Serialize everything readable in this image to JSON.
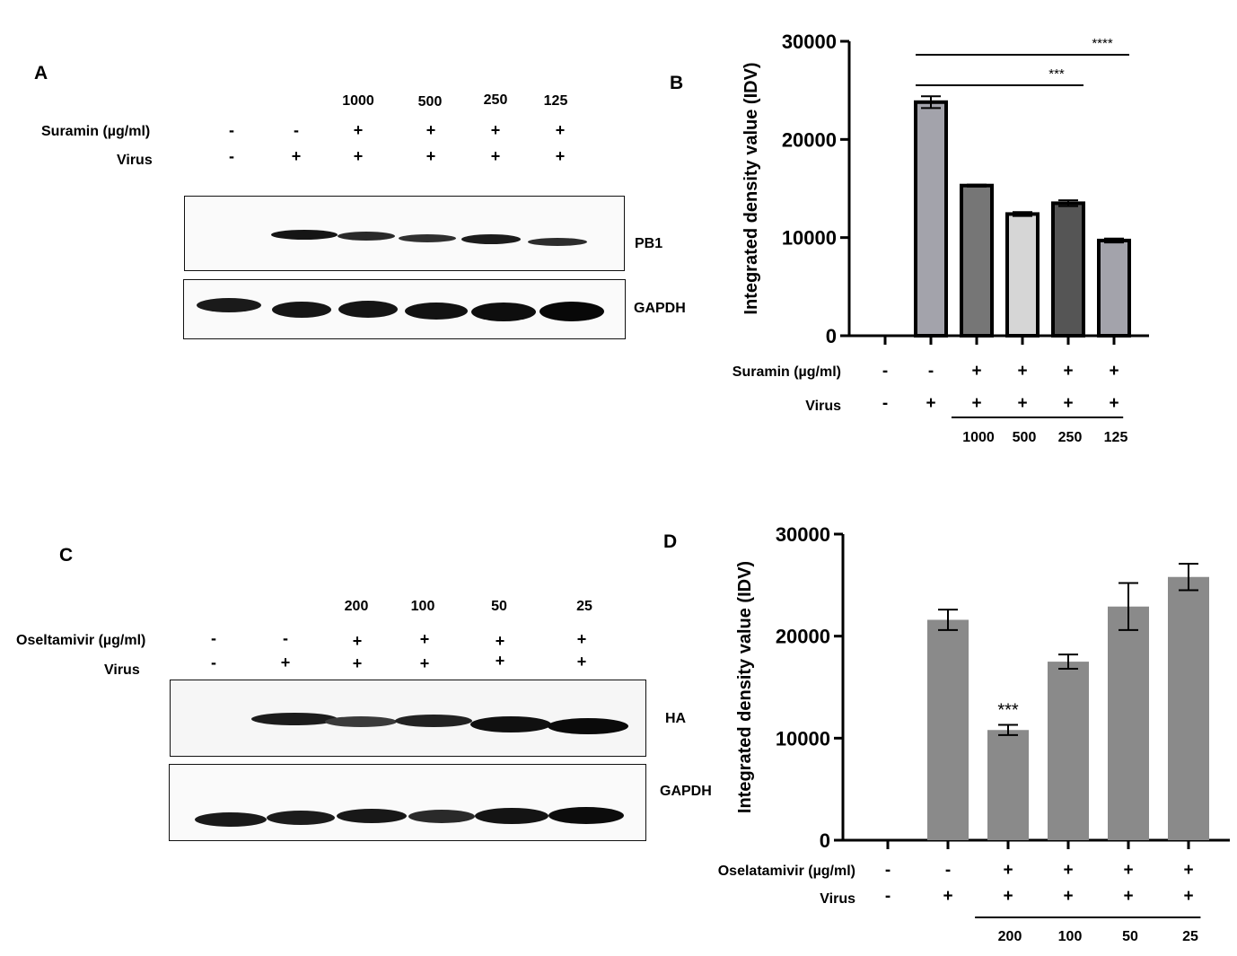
{
  "panel_A": {
    "letter": "A",
    "concentrations": [
      "1000",
      "500",
      "250",
      "125"
    ],
    "row1_label": "Suramin (µg/ml)",
    "row1_signs": [
      "-",
      "-",
      "+",
      "+",
      "+",
      "+"
    ],
    "row2_label": "Virus",
    "row2_signs": [
      "-",
      "+",
      "+",
      "+",
      "+",
      "+"
    ],
    "blot1_label": "PB1",
    "blot2_label": "GAPDH"
  },
  "panel_C": {
    "letter": "C",
    "concentrations": [
      "200",
      "100",
      "50",
      "25"
    ],
    "row1_label": "Oseltamivir (µg/ml)",
    "row1_signs": [
      "-",
      "-",
      "+",
      "+",
      "+",
      "+"
    ],
    "row2_label": "Virus",
    "row2_signs": [
      "-",
      "+",
      "+",
      "+",
      "+",
      "+"
    ],
    "blot1_label": "HA",
    "blot2_label": "GAPDH"
  },
  "chart_data": [
    {
      "panel": "B",
      "type": "bar",
      "ylabel": "Integrated density value (IDV)",
      "ylim": [
        0,
        30000
      ],
      "yticks": [
        "0",
        "10000",
        "20000",
        "30000"
      ],
      "categories": [
        "1",
        "2",
        "3",
        "4",
        "5",
        "6"
      ],
      "values": [
        0,
        23800,
        15300,
        12400,
        13500,
        9700
      ],
      "errors": [
        0,
        600,
        100,
        200,
        300,
        200
      ],
      "bar_colors": [
        "#ffffff",
        "#a3a3ab",
        "#767676",
        "#d6d6d6",
        "#555555",
        "#a3a3ab"
      ],
      "row1_label": "Suramin (µg/ml)",
      "row1_signs": [
        "-",
        "-",
        "+",
        "+",
        "+",
        "+"
      ],
      "row2_label": "Virus",
      "row2_signs": [
        "-",
        "+",
        "+",
        "+",
        "+",
        "+"
      ],
      "concentrations": [
        "1000",
        "500",
        "250",
        "125"
      ],
      "significance": [
        {
          "from": 1,
          "to": 5,
          "label": "****"
        },
        {
          "from": 1,
          "to": 4,
          "label": "***"
        }
      ]
    },
    {
      "panel": "D",
      "type": "bar",
      "ylabel": "Integrated density value (IDV)",
      "ylim": [
        0,
        30000
      ],
      "yticks": [
        "0",
        "10000",
        "20000",
        "30000"
      ],
      "categories": [
        "1",
        "2",
        "3",
        "4",
        "5",
        "6"
      ],
      "values": [
        0,
        21600,
        10800,
        17500,
        22900,
        25800
      ],
      "errors": [
        0,
        1000,
        500,
        700,
        2300,
        1300
      ],
      "bar_color": "#8a8a8a",
      "bar_annotations": [
        "",
        "",
        "***",
        "",
        "",
        ""
      ],
      "row1_label": "Oselatamivir (µg/ml)",
      "row1_signs": [
        "-",
        "-",
        "+",
        "+",
        "+",
        "+"
      ],
      "row2_label": "Virus",
      "row2_signs": [
        "-",
        "+",
        "+",
        "+",
        "+",
        "+"
      ],
      "concentrations": [
        "200",
        "100",
        "50",
        "25"
      ]
    }
  ]
}
